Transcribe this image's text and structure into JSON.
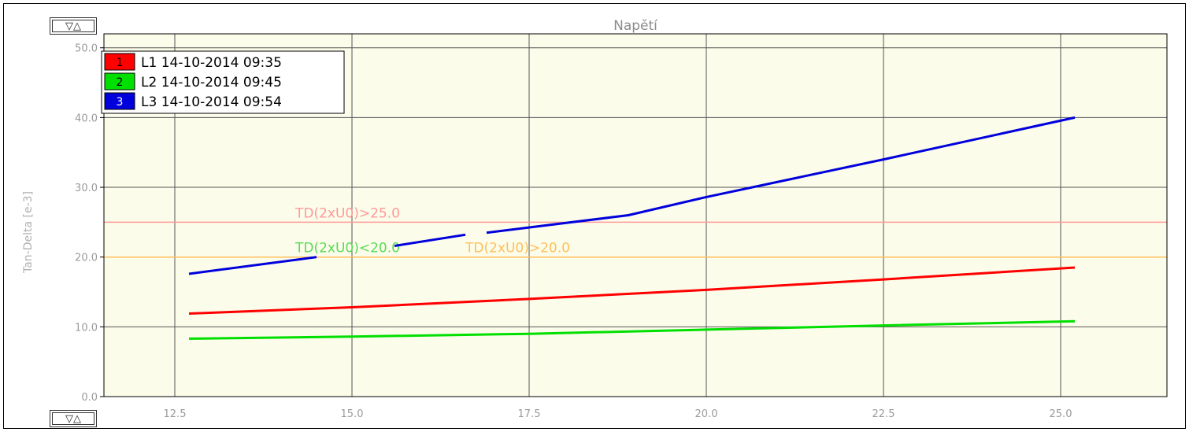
{
  "controls": {
    "scroll_top_label": "▽△",
    "scroll_bottom_label": "▽△"
  },
  "chart_data": {
    "type": "line",
    "title": "Napětí",
    "xlabel": "",
    "ylabel": "Tan-Delta [e-3]",
    "xlim": [
      11.5,
      26.5
    ],
    "ylim": [
      0,
      52
    ],
    "x_ticks": [
      "12.5",
      "15.0",
      "17.5",
      "20.0",
      "22.5",
      "25.0"
    ],
    "y_ticks": [
      "0.0",
      "10.0",
      "20.0",
      "30.0",
      "40.0",
      "50.0"
    ],
    "grid": true,
    "background": "#fcfcea",
    "legend_placement": "top-left",
    "series": [
      {
        "name": "L1 14-10-2014 09:35",
        "marker": "1",
        "color": "#ff0000",
        "x": [
          12.7,
          15.0,
          17.5,
          20.0,
          22.5,
          25.2
        ],
        "y": [
          11.9,
          12.8,
          14.0,
          15.3,
          16.8,
          18.5
        ]
      },
      {
        "name": "L2 14-10-2014 09:45",
        "marker": "2",
        "color": "#00e000",
        "x": [
          12.7,
          15.0,
          17.5,
          20.0,
          22.5,
          25.2
        ],
        "y": [
          8.3,
          8.6,
          9.0,
          9.6,
          10.2,
          10.8
        ]
      },
      {
        "name": "L3 14-10-2014 09:54",
        "marker": "3",
        "color": "#0000dd",
        "x": [
          12.7,
          14.5,
          15.6,
          16.6,
          16.9,
          18.9,
          20.0,
          22.5,
          25.2
        ],
        "y": [
          17.6,
          20.0,
          21.6,
          23.2,
          23.5,
          26.0,
          28.6,
          34.0,
          40.0
        ],
        "gaps": [
          [
            14.5,
            15.6
          ],
          [
            16.6,
            16.9
          ]
        ]
      }
    ],
    "thresholds": [
      {
        "label": "TD(2xU0)>25.0",
        "y": 25.0,
        "label_x": 14.2,
        "color": "#ff9999"
      },
      {
        "label": "TD(2xU0)>20.0",
        "y": 20.0,
        "label_x": 16.6,
        "color": "#ffbf5a"
      },
      {
        "label": "TD(2xU0)<20.0",
        "y": 20.0,
        "label_x": 14.2,
        "color": "#55dd55"
      }
    ]
  }
}
